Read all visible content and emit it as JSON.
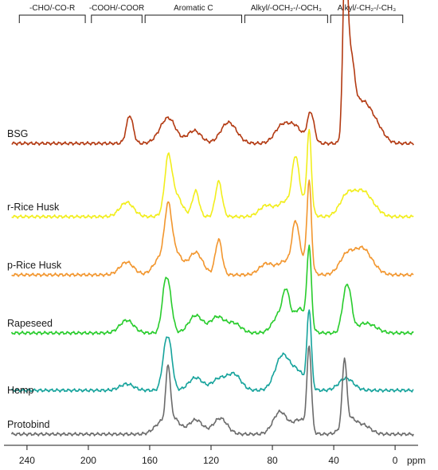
{
  "chart_data": {
    "type": "line",
    "xlim": [
      255,
      -15
    ],
    "x_reversed": true,
    "x_ticks": [
      240,
      200,
      160,
      120,
      80,
      40,
      0
    ],
    "x_unit": "ppm",
    "grid": false,
    "legend": "none",
    "regions": [
      {
        "label": "-CHO/-CO-R",
        "from": 245,
        "to": 202
      },
      {
        "label": "-COOH/-COOR",
        "from": 198,
        "to": 165
      },
      {
        "label": "Aromatic C",
        "from": 163,
        "to": 100
      },
      {
        "label": "Alkyl/-OCH₂-/-OCH₃",
        "from": 98,
        "to": 44
      },
      {
        "label": "Alkyl/-CH₂-/-CH₃",
        "from": 42,
        "to": -5
      }
    ],
    "series": [
      {
        "name": "BSG",
        "color": "#b33a12",
        "peaks": [
          [
            173,
            35
          ],
          [
            152,
            10
          ],
          [
            147,
            26
          ],
          [
            131,
            16
          ],
          [
            110,
            20
          ],
          [
            105,
            10
          ],
          [
            75,
            10
          ],
          [
            73,
            12
          ],
          [
            65,
            20
          ],
          [
            55,
            38
          ],
          [
            33,
            125
          ],
          [
            32,
            96
          ],
          [
            30,
            58
          ],
          [
            28,
            42
          ],
          [
            25,
            30
          ],
          [
            20,
            26
          ],
          [
            15,
            18
          ],
          [
            10,
            10
          ]
        ]
      },
      {
        "name": "r-Rice Husk",
        "color": "#f2ee1c",
        "peaks": [
          [
            175,
            18
          ],
          [
            148,
            58
          ],
          [
            144,
            30
          ],
          [
            130,
            32
          ],
          [
            115,
            44
          ],
          [
            84,
            14
          ],
          [
            72,
            18
          ],
          [
            65,
            58
          ],
          [
            61,
            20
          ],
          [
            56,
            98
          ],
          [
            33,
            14
          ],
          [
            29,
            18
          ],
          [
            21,
            26
          ],
          [
            14,
            10
          ]
        ]
      },
      {
        "name": "p-Rice Husk",
        "color": "#f2962e",
        "peaks": [
          [
            175,
            16
          ],
          [
            153,
            20
          ],
          [
            148,
            60
          ],
          [
            144,
            30
          ],
          [
            130,
            28
          ],
          [
            115,
            44
          ],
          [
            84,
            14
          ],
          [
            72,
            16
          ],
          [
            65,
            50
          ],
          [
            61,
            20
          ],
          [
            56,
            108
          ],
          [
            33,
            14
          ],
          [
            29,
            16
          ],
          [
            21,
            28
          ],
          [
            14,
            8
          ]
        ]
      },
      {
        "name": "Rapeseed",
        "color": "#28cc2c",
        "peaks": [
          [
            175,
            16
          ],
          [
            150,
            52
          ],
          [
            147,
            36
          ],
          [
            130,
            22
          ],
          [
            116,
            20
          ],
          [
            105,
            12
          ],
          [
            75,
            24
          ],
          [
            71,
            36
          ],
          [
            62,
            30
          ],
          [
            56,
            98
          ],
          [
            33,
            34
          ],
          [
            30,
            42
          ],
          [
            21,
            10
          ],
          [
            14,
            6
          ]
        ]
      },
      {
        "name": "Hemp",
        "color": "#16a39c",
        "peaks": [
          [
            175,
            8
          ],
          [
            150,
            40
          ],
          [
            147,
            46
          ],
          [
            130,
            16
          ],
          [
            115,
            14
          ],
          [
            105,
            20
          ],
          [
            75,
            22
          ],
          [
            72,
            24
          ],
          [
            63,
            22
          ],
          [
            56,
            96
          ],
          [
            33,
            10
          ],
          [
            30,
            6
          ]
        ]
      },
      {
        "name": "Protobind",
        "color": "#6b6b6b",
        "peaks": [
          [
            153,
            12
          ],
          [
            148,
            66
          ],
          [
            145,
            20
          ],
          [
            130,
            18
          ],
          [
            114,
            20
          ],
          [
            75,
            28
          ],
          [
            62,
            18
          ],
          [
            56,
            104
          ],
          [
            33,
            80
          ],
          [
            30,
            20
          ],
          [
            20,
            10
          ]
        ]
      }
    ]
  }
}
